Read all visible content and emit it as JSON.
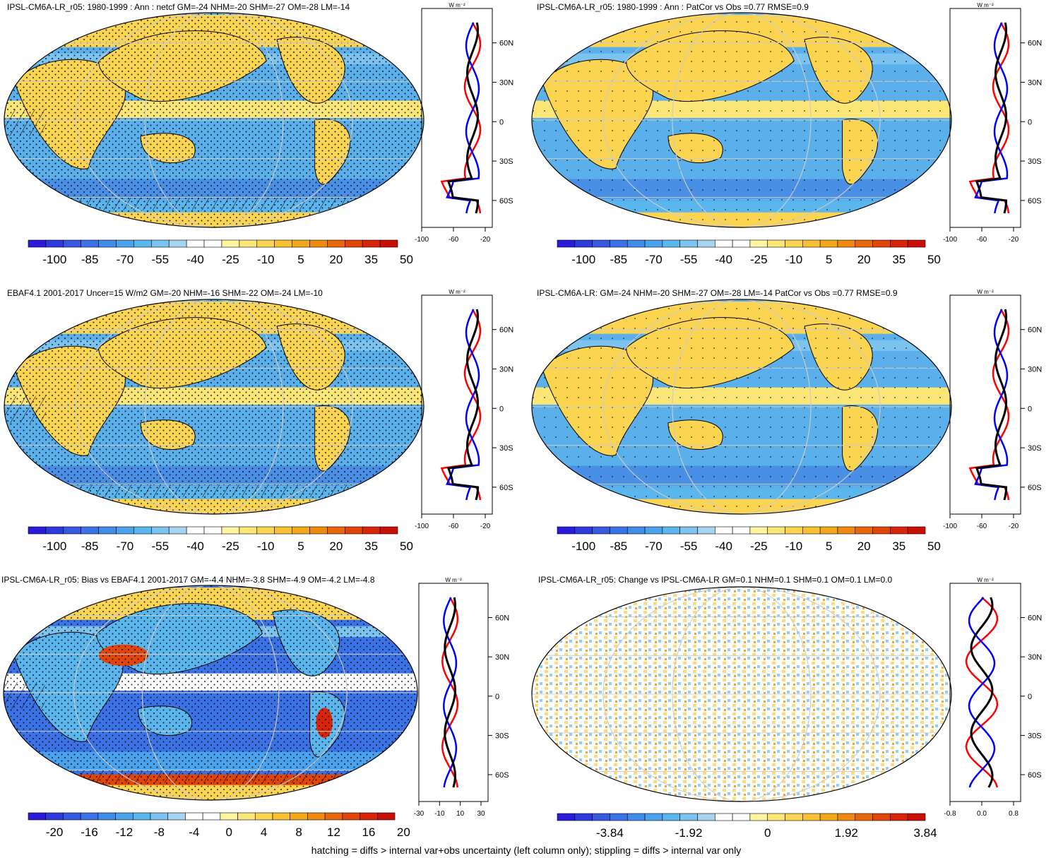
{
  "colors": {
    "scale": [
      "#2b1ad8",
      "#2e3bdc",
      "#3659e0",
      "#3b73e6",
      "#3f8de9",
      "#4aa3ec",
      "#5bb6ee",
      "#7cc3ef",
      "#a6d4ef",
      "#ffffff",
      "#ffffff",
      "#fff5a0",
      "#fde678",
      "#fbd552",
      "#f7c133",
      "#f3a81b",
      "#ee8a10",
      "#e8670c",
      "#e0450a",
      "#d82408",
      "#c81006"
    ],
    "ocean_neg": "#5bb0ec",
    "ocean_deep": "#4a8fe6",
    "land_pos": "#fbd552",
    "model_line": "#0000ff",
    "obs_line": "#ff0000",
    "mean_line": "#000000"
  },
  "panels": [
    {
      "id": "p1",
      "title": "IPSL-CM6A-LR_r05: 1980-1999 : Ann : netcf GM=-24 NHM=-20 SHM=-27 OM=-28 LM=-14",
      "lat_ticks": [
        "60N",
        "30N",
        "0",
        "30S",
        "60S"
      ],
      "zonal_ticks": [
        "-100",
        "-60",
        "-20"
      ],
      "unit": "W m⁻²",
      "colorbar_labels": [
        "-100",
        "-85",
        "-70",
        "-55",
        "-40",
        "-25",
        "-10",
        "5",
        "20",
        "35",
        "50"
      ]
    },
    {
      "id": "p2",
      "title": "IPSL-CM6A-LR_r05: 1980-1999 : Ann : PatCor vs Obs =0.77 RMSE=0.9",
      "lat_ticks": [
        "60N",
        "30N",
        "0",
        "30S",
        "60S"
      ],
      "zonal_ticks": [
        "-100",
        "-60",
        "-20"
      ],
      "unit": "W m⁻²",
      "colorbar_labels": [
        "-100",
        "-85",
        "-70",
        "-55",
        "-40",
        "-25",
        "-10",
        "5",
        "20",
        "35",
        "50"
      ]
    },
    {
      "id": "p3",
      "title": "EBAF4.1 2001-2017 Uncer=15 W/m2 GM=-20 NHM=-16 SHM=-22 OM=-24 LM=-10",
      "lat_ticks": [
        "60N",
        "30N",
        "0",
        "30S",
        "60S"
      ],
      "zonal_ticks": [
        "-100",
        "-60",
        "-20"
      ],
      "unit": "W m⁻²",
      "colorbar_labels": [
        "-100",
        "-85",
        "-70",
        "-55",
        "-40",
        "-25",
        "-10",
        "5",
        "20",
        "35",
        "50"
      ]
    },
    {
      "id": "p4",
      "title": "IPSL-CM6A-LR: GM=-24 NHM=-20 SHM=-27 OM=-28 LM=-14 PatCor vs Obs =0.77 RMSE=0.9",
      "lat_ticks": [
        "60N",
        "30N",
        "0",
        "30S",
        "60S"
      ],
      "zonal_ticks": [
        "-100",
        "-60",
        "-20"
      ],
      "unit": "W m⁻²",
      "colorbar_labels": [
        "-100",
        "-85",
        "-70",
        "-55",
        "-40",
        "-25",
        "-10",
        "5",
        "20",
        "35",
        "50"
      ]
    },
    {
      "id": "p5",
      "title": "IPSL-CM6A-LR_r05: Bias vs EBAF4.1 2001-2017 GM=-4.4 NHM=-3.8 SHM=-4.9 OM=-4.2 LM=-4.8",
      "lat_ticks": [
        "60N",
        "30N",
        "0",
        "30S",
        "60S"
      ],
      "zonal_ticks": [
        "-30",
        "-10",
        "10",
        "30"
      ],
      "unit": "W m⁻²",
      "colorbar_labels": [
        "-20",
        "-16",
        "-12",
        "-8",
        "-4",
        "0",
        "4",
        "8",
        "12",
        "16",
        "20"
      ]
    },
    {
      "id": "p6",
      "title": "IPSL-CM6A-LR_r05: Change vs IPSL-CM6A-LR GM=0.1 NHM=0.1 SHM=0.1 OM=0.1 LM=0.0",
      "lat_ticks": [
        "60N",
        "30N",
        "0",
        "30S",
        "60S"
      ],
      "zonal_ticks": [
        "-0.8",
        "0.0",
        "0.8"
      ],
      "unit": "W m⁻²",
      "colorbar_labels": [
        "-3.84",
        "-1.92",
        "0",
        "1.92",
        "3.84"
      ]
    }
  ],
  "footer": "hatching = diffs > internal var+obs uncertainty (left column only); stippling = diffs > internal var only"
}
